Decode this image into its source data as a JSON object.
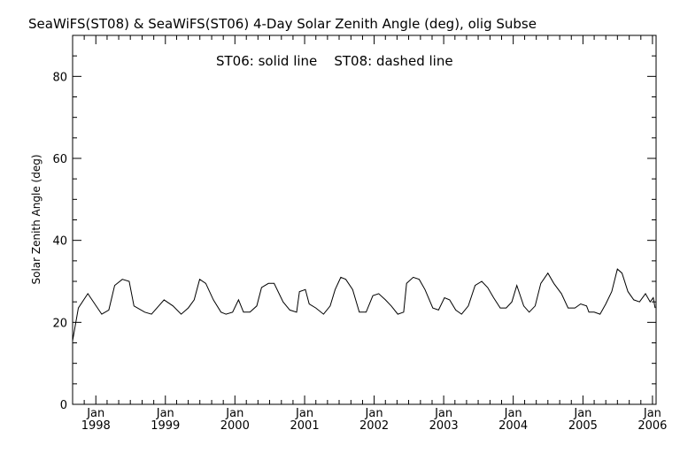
{
  "chart_data": {
    "type": "line",
    "title": "SeaWiFS(ST08) & SeaWiFS(ST06) 4-Day Solar Zenith Angle (deg), olig Subse",
    "annotation": "ST06: solid line    ST08: dashed line",
    "xlabel": "",
    "ylabel": "Solar Zenith Angle (deg)",
    "ylim": [
      0,
      90
    ],
    "xlim": [
      "1997-09-01",
      "2006-01-20"
    ],
    "y_ticks": [
      "0",
      "20",
      "40",
      "60",
      "80"
    ],
    "x_ticks": [
      {
        "month": "Jan",
        "year": "1998",
        "date": "1998-01-01"
      },
      {
        "month": "Jan",
        "year": "1999",
        "date": "1999-01-01"
      },
      {
        "month": "Jan",
        "year": "2000",
        "date": "2000-01-01"
      },
      {
        "month": "Jan",
        "year": "2001",
        "date": "2001-01-01"
      },
      {
        "month": "Jan",
        "year": "2002",
        "date": "2002-01-01"
      },
      {
        "month": "Jan",
        "year": "2003",
        "date": "2003-01-01"
      },
      {
        "month": "Jan",
        "year": "2004",
        "date": "2004-01-01"
      },
      {
        "month": "Jan",
        "year": "2005",
        "date": "2005-01-01"
      },
      {
        "month": "Jan",
        "year": "2006",
        "date": "2006-01-01"
      }
    ],
    "grid": false,
    "line_color": "#000000",
    "series": [
      {
        "name": "ST06",
        "style": "solid",
        "points": [
          [
            "1997-09-01",
            15.5
          ],
          [
            "1997-10-01",
            23.5
          ],
          [
            "1997-11-20",
            27.0
          ],
          [
            "1998-02-01",
            22.0
          ],
          [
            "1998-03-10",
            23.0
          ],
          [
            "1998-04-10",
            29.0
          ],
          [
            "1998-05-20",
            30.5
          ],
          [
            "1998-06-25",
            30.0
          ],
          [
            "1998-07-20",
            24.0
          ],
          [
            "1998-09-15",
            22.5
          ],
          [
            "1998-10-20",
            22.0
          ],
          [
            "1998-12-25",
            25.5
          ],
          [
            "1999-02-10",
            24.0
          ],
          [
            "1999-03-25",
            22.0
          ],
          [
            "1999-05-01",
            23.5
          ],
          [
            "1999-06-01",
            25.5
          ],
          [
            "1999-06-30",
            30.5
          ],
          [
            "1999-08-01",
            29.5
          ],
          [
            "1999-09-10",
            25.5
          ],
          [
            "1999-10-20",
            22.5
          ],
          [
            "1999-11-15",
            22.0
          ],
          [
            "1999-12-20",
            22.5
          ],
          [
            "2000-01-20",
            25.5
          ],
          [
            "2000-02-15",
            22.5
          ],
          [
            "2000-03-20",
            22.5
          ],
          [
            "2000-04-25",
            24.0
          ],
          [
            "2000-05-20",
            28.5
          ],
          [
            "2000-06-25",
            29.5
          ],
          [
            "2000-07-25",
            29.5
          ],
          [
            "2000-09-10",
            25.0
          ],
          [
            "2000-10-15",
            23.0
          ],
          [
            "2000-11-20",
            22.5
          ],
          [
            "2000-12-05",
            27.5
          ],
          [
            "2001-01-05",
            28.0
          ],
          [
            "2001-01-25",
            24.5
          ],
          [
            "2001-03-01",
            23.5
          ],
          [
            "2001-04-10",
            22.0
          ],
          [
            "2001-05-15",
            24.0
          ],
          [
            "2001-06-10",
            28.0
          ],
          [
            "2001-07-10",
            31.0
          ],
          [
            "2001-08-05",
            30.5
          ],
          [
            "2001-09-10",
            28.0
          ],
          [
            "2001-10-15",
            22.5
          ],
          [
            "2001-11-20",
            22.5
          ],
          [
            "2001-12-25",
            26.5
          ],
          [
            "2002-01-25",
            27.0
          ],
          [
            "2002-03-01",
            25.5
          ],
          [
            "2002-04-01",
            24.0
          ],
          [
            "2002-05-05",
            22.0
          ],
          [
            "2002-06-05",
            22.5
          ],
          [
            "2002-06-20",
            29.5
          ],
          [
            "2002-07-25",
            31.0
          ],
          [
            "2002-08-25",
            30.5
          ],
          [
            "2002-09-25",
            28.0
          ],
          [
            "2002-11-05",
            23.5
          ],
          [
            "2002-12-05",
            23.0
          ],
          [
            "2003-01-05",
            26.0
          ],
          [
            "2003-02-01",
            25.5
          ],
          [
            "2003-03-05",
            23.0
          ],
          [
            "2003-04-05",
            22.0
          ],
          [
            "2003-05-10",
            24.0
          ],
          [
            "2003-06-15",
            29.0
          ],
          [
            "2003-07-20",
            30.0
          ],
          [
            "2003-08-20",
            28.5
          ],
          [
            "2003-09-20",
            26.0
          ],
          [
            "2003-10-25",
            23.5
          ],
          [
            "2003-11-25",
            23.5
          ],
          [
            "2003-12-25",
            25.0
          ],
          [
            "2004-01-20",
            29.0
          ],
          [
            "2004-02-25",
            24.0
          ],
          [
            "2004-03-25",
            22.5
          ],
          [
            "2004-04-25",
            24.0
          ],
          [
            "2004-05-25",
            29.5
          ],
          [
            "2004-07-01",
            32.0
          ],
          [
            "2004-08-01",
            29.5
          ],
          [
            "2004-09-10",
            27.0
          ],
          [
            "2004-10-15",
            23.5
          ],
          [
            "2004-11-20",
            23.5
          ],
          [
            "2004-12-20",
            24.5
          ],
          [
            "2005-01-20",
            24.0
          ],
          [
            "2005-02-01",
            22.5
          ],
          [
            "2005-03-01",
            22.5
          ],
          [
            "2005-04-01",
            22.0
          ],
          [
            "2005-05-01",
            24.5
          ],
          [
            "2005-06-01",
            27.5
          ],
          [
            "2005-07-01",
            33.0
          ],
          [
            "2005-07-25",
            32.0
          ],
          [
            "2005-08-25",
            27.5
          ],
          [
            "2005-09-25",
            25.5
          ],
          [
            "2005-10-25",
            25.0
          ],
          [
            "2005-11-25",
            27.0
          ],
          [
            "2005-12-20",
            25.0
          ],
          [
            "2006-01-05",
            26.0
          ],
          [
            "2006-01-15",
            23.5
          ]
        ]
      }
    ]
  }
}
